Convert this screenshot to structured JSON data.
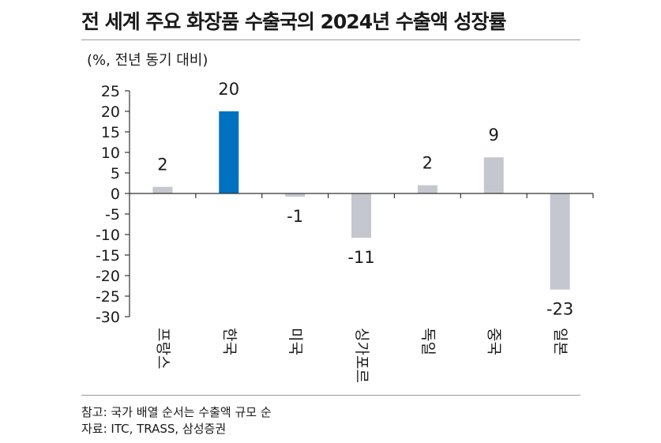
{
  "title": "전 세계 주요 화장품 수출국의 2024년 수출액 성장률",
  "unit_label": "(%, 전년 동기 대비)",
  "notes": [
    "참고: 국가 배열 순서는 수출액 규모 순",
    "자료: ITC, TRASS, 삼성증권"
  ],
  "colors": {
    "highlight": "#0070c0",
    "default": "#c4c7d0",
    "axis": "#333333"
  },
  "chart_data": {
    "type": "bar",
    "categories": [
      "프랑스",
      "한국",
      "미국",
      "싱가포르",
      "독일",
      "중국",
      "일본"
    ],
    "values": [
      2,
      20,
      -1,
      -11,
      2,
      9,
      -23
    ],
    "bar_heights": [
      1.6,
      20,
      -0.8,
      -10.8,
      2.0,
      8.8,
      -23.4
    ],
    "value_labels": [
      "2",
      "20",
      "-1",
      "-11",
      "2",
      "9",
      "-23"
    ],
    "highlight_category": "한국",
    "ylim": [
      -30,
      25
    ],
    "yticks": [
      25,
      20,
      15,
      10,
      5,
      0,
      -5,
      -10,
      -15,
      -20,
      -25,
      -30
    ],
    "grid": false,
    "legend": "none"
  }
}
